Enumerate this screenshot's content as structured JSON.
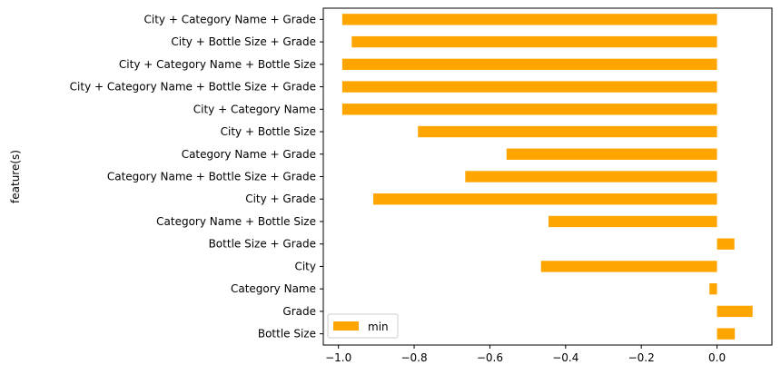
{
  "chart_data": {
    "type": "bar",
    "orientation": "horizontal",
    "ylabel": "feature(s)",
    "xlabel": "",
    "categories": [
      "Bottle Size",
      "Grade",
      "Category Name",
      "City",
      "Bottle Size + Grade",
      "Category Name + Bottle Size",
      "City + Grade",
      "Category Name + Bottle Size + Grade",
      "Category Name + Grade",
      "City + Bottle Size",
      "City + Category Name",
      "City + Category Name + Bottle Size + Grade",
      "City + Category Name + Bottle Size",
      "City + Bottle Size + Grade",
      "City + Category Name + Grade"
    ],
    "series": [
      {
        "name": "min",
        "color": "#ffa500",
        "values": [
          0.047,
          0.094,
          -0.02,
          -0.465,
          0.046,
          -0.445,
          -0.908,
          -0.665,
          -0.556,
          -0.79,
          -0.99,
          -0.99,
          -0.99,
          -0.965,
          -0.99
        ]
      }
    ],
    "xlim": [
      -1.04,
      0.145
    ],
    "xticks": [
      -1.0,
      -0.8,
      -0.6,
      -0.4,
      -0.2,
      0.0
    ],
    "xtick_labels": [
      "−1.0",
      "−0.8",
      "−0.6",
      "−0.4",
      "−0.2",
      "0.0"
    ],
    "grid": false,
    "legend": {
      "position": "lower-left",
      "entries": [
        "min"
      ]
    }
  }
}
